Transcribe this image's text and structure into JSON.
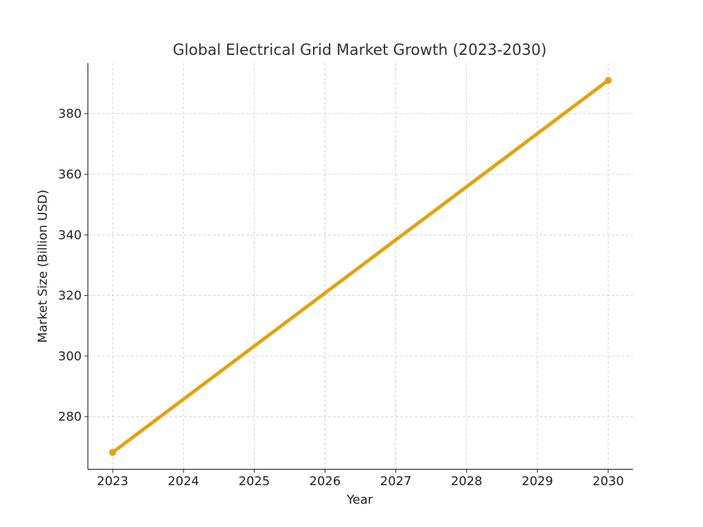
{
  "chart_data": {
    "type": "line",
    "title": "Global Electrical Grid Market Growth (2023-2030)",
    "xlabel": "Year",
    "ylabel": "Market Size (Billion USD)",
    "x": [
      2023,
      2030
    ],
    "series": [
      {
        "values": [
          268.2,
          391.0
        ],
        "color": "#E6A10A"
      }
    ],
    "xticks": [
      "2023",
      "2024",
      "2025",
      "2026",
      "2027",
      "2028",
      "2029",
      "2030"
    ],
    "yticks": [
      "280",
      "300",
      "320",
      "340",
      "360",
      "380"
    ],
    "xlim": [
      2022.65,
      2030.35
    ],
    "ylim": [
      262.6,
      396.7
    ],
    "grid": true
  }
}
